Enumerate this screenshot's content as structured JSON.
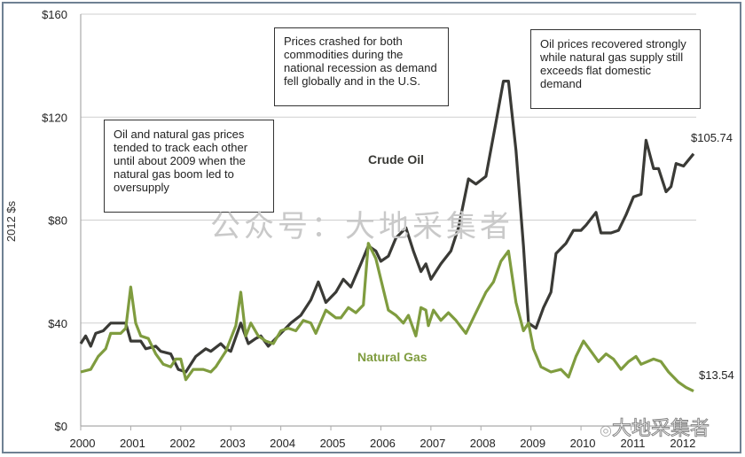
{
  "chart_data": {
    "type": "line",
    "title": "",
    "xlabel": "",
    "ylabel": "2012 $s",
    "xlim": [
      2000,
      2012.25
    ],
    "ylim": [
      0,
      160
    ],
    "x_ticks": [
      "2000",
      "2001",
      "2002",
      "2003",
      "2004",
      "2005",
      "2006",
      "2007",
      "2008",
      "2009",
      "2010",
      "2011",
      "2012"
    ],
    "y_ticks": [
      "$0",
      "$40",
      "$80",
      "$120",
      "$160"
    ],
    "y_tick_values": [
      0,
      40,
      80,
      120,
      160
    ],
    "grid": "horizontal",
    "series": [
      {
        "name": "Crude Oil",
        "color": "#3a3a36",
        "end_label": "$105.74",
        "x": [
          2000,
          2000.1,
          2000.2,
          2000.3,
          2000.45,
          2000.6,
          2000.8,
          2000.9,
          2001.0,
          2001.2,
          2001.3,
          2001.5,
          2001.6,
          2001.8,
          2001.95,
          2002.1,
          2002.3,
          2002.5,
          2002.6,
          2002.8,
          2002.9,
          2003.0,
          2003.2,
          2003.35,
          2003.5,
          2003.6,
          2003.75,
          2004.0,
          2004.2,
          2004.4,
          2004.6,
          2004.75,
          2004.9,
          2005.1,
          2005.25,
          2005.4,
          2005.6,
          2005.75,
          2005.9,
          2006.0,
          2006.15,
          2006.3,
          2006.5,
          2006.65,
          2006.8,
          2006.9,
          2007.0,
          2007.2,
          2007.4,
          2007.55,
          2007.75,
          2007.9,
          2008.1,
          2008.3,
          2008.45,
          2008.55,
          2008.7,
          2008.85,
          2008.95,
          2009.1,
          2009.25,
          2009.4,
          2009.5,
          2009.7,
          2009.85,
          2010.0,
          2010.1,
          2010.3,
          2010.4,
          2010.6,
          2010.75,
          2010.9,
          2011.05,
          2011.2,
          2011.3,
          2011.45,
          2011.55,
          2011.7,
          2011.8,
          2011.9,
          2012.05,
          2012.25
        ],
        "y": [
          32,
          35,
          31,
          36,
          37,
          40,
          40,
          40,
          33,
          33,
          30,
          31,
          29,
          28,
          22,
          21,
          27,
          30,
          29,
          32,
          30,
          29,
          40,
          32,
          34,
          35,
          31,
          36,
          40,
          43,
          49,
          56,
          48,
          52,
          57,
          54,
          63,
          70,
          68,
          64,
          66,
          73,
          77,
          68,
          60,
          63,
          57,
          63,
          68,
          77,
          96,
          94,
          97,
          118,
          134,
          134,
          107,
          70,
          40,
          38,
          46,
          52,
          67,
          71,
          76,
          76,
          78,
          83,
          75,
          75,
          76,
          82,
          89,
          90,
          111,
          100,
          100,
          91,
          93,
          102,
          101,
          105.74
        ]
      },
      {
        "name": "Natural Gas",
        "color": "#7f9c3f",
        "end_label": "$13.54",
        "x": [
          2000,
          2000.2,
          2000.35,
          2000.5,
          2000.6,
          2000.8,
          2000.9,
          2001.0,
          2001.1,
          2001.2,
          2001.35,
          2001.5,
          2001.65,
          2001.8,
          2001.9,
          2002.0,
          2002.1,
          2002.25,
          2002.45,
          2002.6,
          2002.7,
          2002.9,
          2003.1,
          2003.2,
          2003.3,
          2003.4,
          2003.55,
          2003.7,
          2003.85,
          2004.0,
          2004.15,
          2004.3,
          2004.45,
          2004.6,
          2004.7,
          2004.9,
          2005.1,
          2005.2,
          2005.35,
          2005.5,
          2005.65,
          2005.75,
          2005.9,
          2006.0,
          2006.15,
          2006.3,
          2006.45,
          2006.55,
          2006.7,
          2006.8,
          2006.9,
          2006.95,
          2007.05,
          2007.2,
          2007.35,
          2007.5,
          2007.7,
          2007.9,
          2008.1,
          2008.25,
          2008.4,
          2008.55,
          2008.7,
          2008.85,
          2008.95,
          2009.05,
          2009.2,
          2009.4,
          2009.6,
          2009.75,
          2009.9,
          2010.05,
          2010.2,
          2010.35,
          2010.5,
          2010.65,
          2010.8,
          2010.95,
          2011.1,
          2011.2,
          2011.45,
          2011.6,
          2011.75,
          2011.95,
          2012.1,
          2012.25
        ],
        "y": [
          21,
          22,
          27,
          30,
          36,
          36,
          38,
          54,
          40,
          35,
          34,
          28,
          24,
          23,
          26,
          26,
          18,
          22,
          22,
          21,
          23,
          29,
          39,
          52,
          35,
          40,
          35,
          33,
          32,
          37,
          38,
          37,
          41,
          40,
          36,
          45,
          42,
          42,
          46,
          44,
          47,
          71,
          65,
          57,
          45,
          43,
          40,
          43,
          35,
          46,
          45,
          39,
          45,
          41,
          44,
          41,
          36,
          44,
          52,
          56,
          64,
          68,
          48,
          37,
          40,
          30,
          23,
          21,
          22,
          19,
          27,
          33,
          29,
          25,
          28,
          26,
          22,
          25,
          27,
          24,
          26,
          25,
          21,
          17,
          15,
          13.54
        ]
      }
    ],
    "annotations": [
      "Oil and natural gas prices tended to track each other until about 2009 when the natural gas boom led to oversupply",
      "Prices crashed for both commodities during the national recession as demand fell globally and in the U.S.",
      "Oil prices recovered strongly while natural gas supply still exceeds flat domestic demand"
    ]
  },
  "watermark": "公众号：大地采集者",
  "logo_text": "大地采集者"
}
